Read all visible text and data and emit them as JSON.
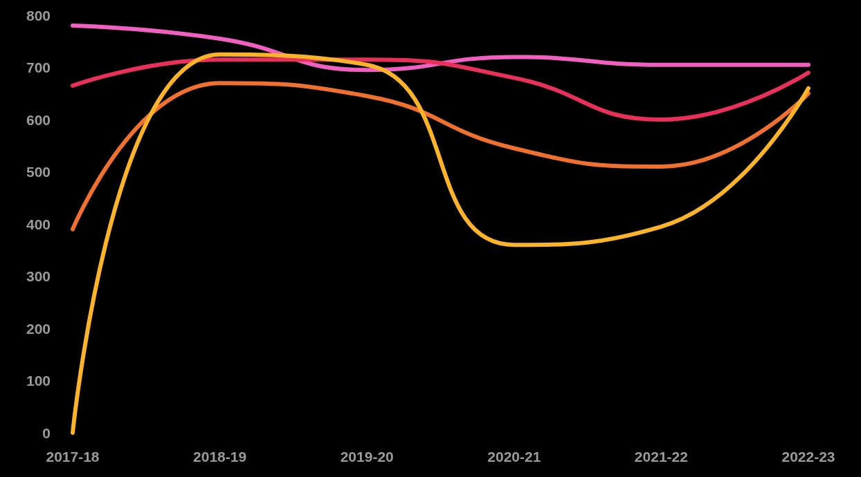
{
  "chart_data": {
    "type": "line",
    "categories": [
      "2017-18",
      "2018-19",
      "2019-20",
      "2020-21",
      "2021-22",
      "2022-23"
    ],
    "series": [
      {
        "color": "#f060c0",
        "values": [
          780,
          755,
          695,
          720,
          705,
          705
        ]
      },
      {
        "color": "#e8305a",
        "values": [
          665,
          715,
          715,
          680,
          600,
          690
        ]
      },
      {
        "color": "#f07030",
        "values": [
          390,
          670,
          645,
          545,
          510,
          650
        ]
      },
      {
        "color": "#fbb42a",
        "values": [
          0,
          725,
          705,
          360,
          395,
          660
        ]
      }
    ],
    "ylim": [
      0,
      800
    ],
    "yticks": [
      0,
      100,
      200,
      300,
      400,
      500,
      600,
      700,
      800
    ],
    "grid": false,
    "marker": "none",
    "line_style": "solid"
  }
}
